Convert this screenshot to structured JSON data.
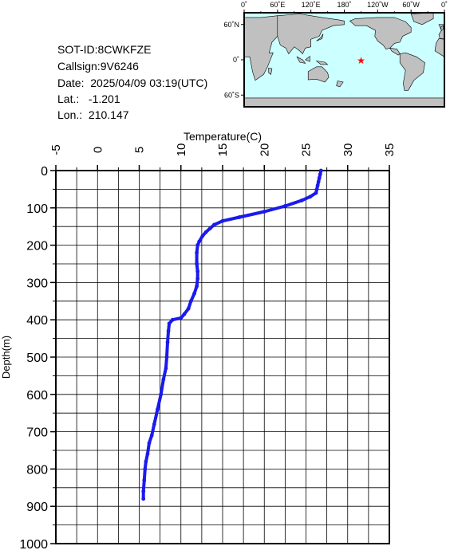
{
  "info": {
    "sot_id": "SOT-ID:8CWKFZE",
    "callsign": "Callsign:9V6246",
    "date": "Date:  2025/04/09 03:19(UTC)",
    "lat": "Lat.:   -1.201",
    "lon": "Lon.:  210.147"
  },
  "map": {
    "lon_ticks": [
      "0˚",
      "60˚E",
      "120˚E",
      "180˚",
      "120˚W",
      "60˚W",
      "0˚"
    ],
    "lat_ticks": [
      "60˚N",
      "0˚",
      "60˚S"
    ],
    "ocean_color": "#ccffff",
    "land_color": "#c0c0c0",
    "marker": {
      "lon": 210.147,
      "lat": -1.201,
      "symbol": "★",
      "color": "#ff0000"
    }
  },
  "chart_data": {
    "type": "line",
    "xlabel": "Temperature(C)",
    "ylabel": "Depth(m)",
    "xlim": [
      -5,
      35
    ],
    "ylim": [
      1000,
      0
    ],
    "x_ticks": [
      "-5",
      "0",
      "5",
      "10",
      "15",
      "20",
      "25",
      "30",
      "35"
    ],
    "y_ticks": [
      "0",
      "100",
      "200",
      "300",
      "400",
      "500",
      "600",
      "700",
      "800",
      "900",
      "1000"
    ],
    "grid": true,
    "line_color": "#1a1aee",
    "series": [
      {
        "x": [
          26.8,
          26.7,
          26.6,
          26.5,
          26.4,
          26.3,
          26.2,
          25.5,
          24.5,
          22.5,
          20.0,
          17.0,
          15.0,
          14.0,
          13.5,
          13.0,
          12.6,
          12.2,
          12.0,
          11.9,
          11.9,
          12.0,
          12.0,
          11.9,
          11.6,
          11.2,
          10.9,
          10.4,
          10.0,
          9.0,
          8.6,
          8.5,
          8.4,
          8.3,
          8.2,
          7.9,
          7.6,
          7.2,
          6.8,
          6.5,
          6.2,
          6.0,
          5.8,
          5.7,
          5.6,
          5.5,
          5.5
        ],
        "y": [
          0,
          10,
          20,
          30,
          40,
          50,
          60,
          70,
          80,
          95,
          110,
          125,
          135,
          145,
          155,
          165,
          175,
          190,
          200,
          220,
          250,
          270,
          290,
          310,
          330,
          350,
          370,
          385,
          395,
          400,
          410,
          430,
          460,
          500,
          530,
          560,
          600,
          640,
          680,
          710,
          730,
          760,
          780,
          800,
          830,
          860,
          880
        ]
      }
    ]
  }
}
